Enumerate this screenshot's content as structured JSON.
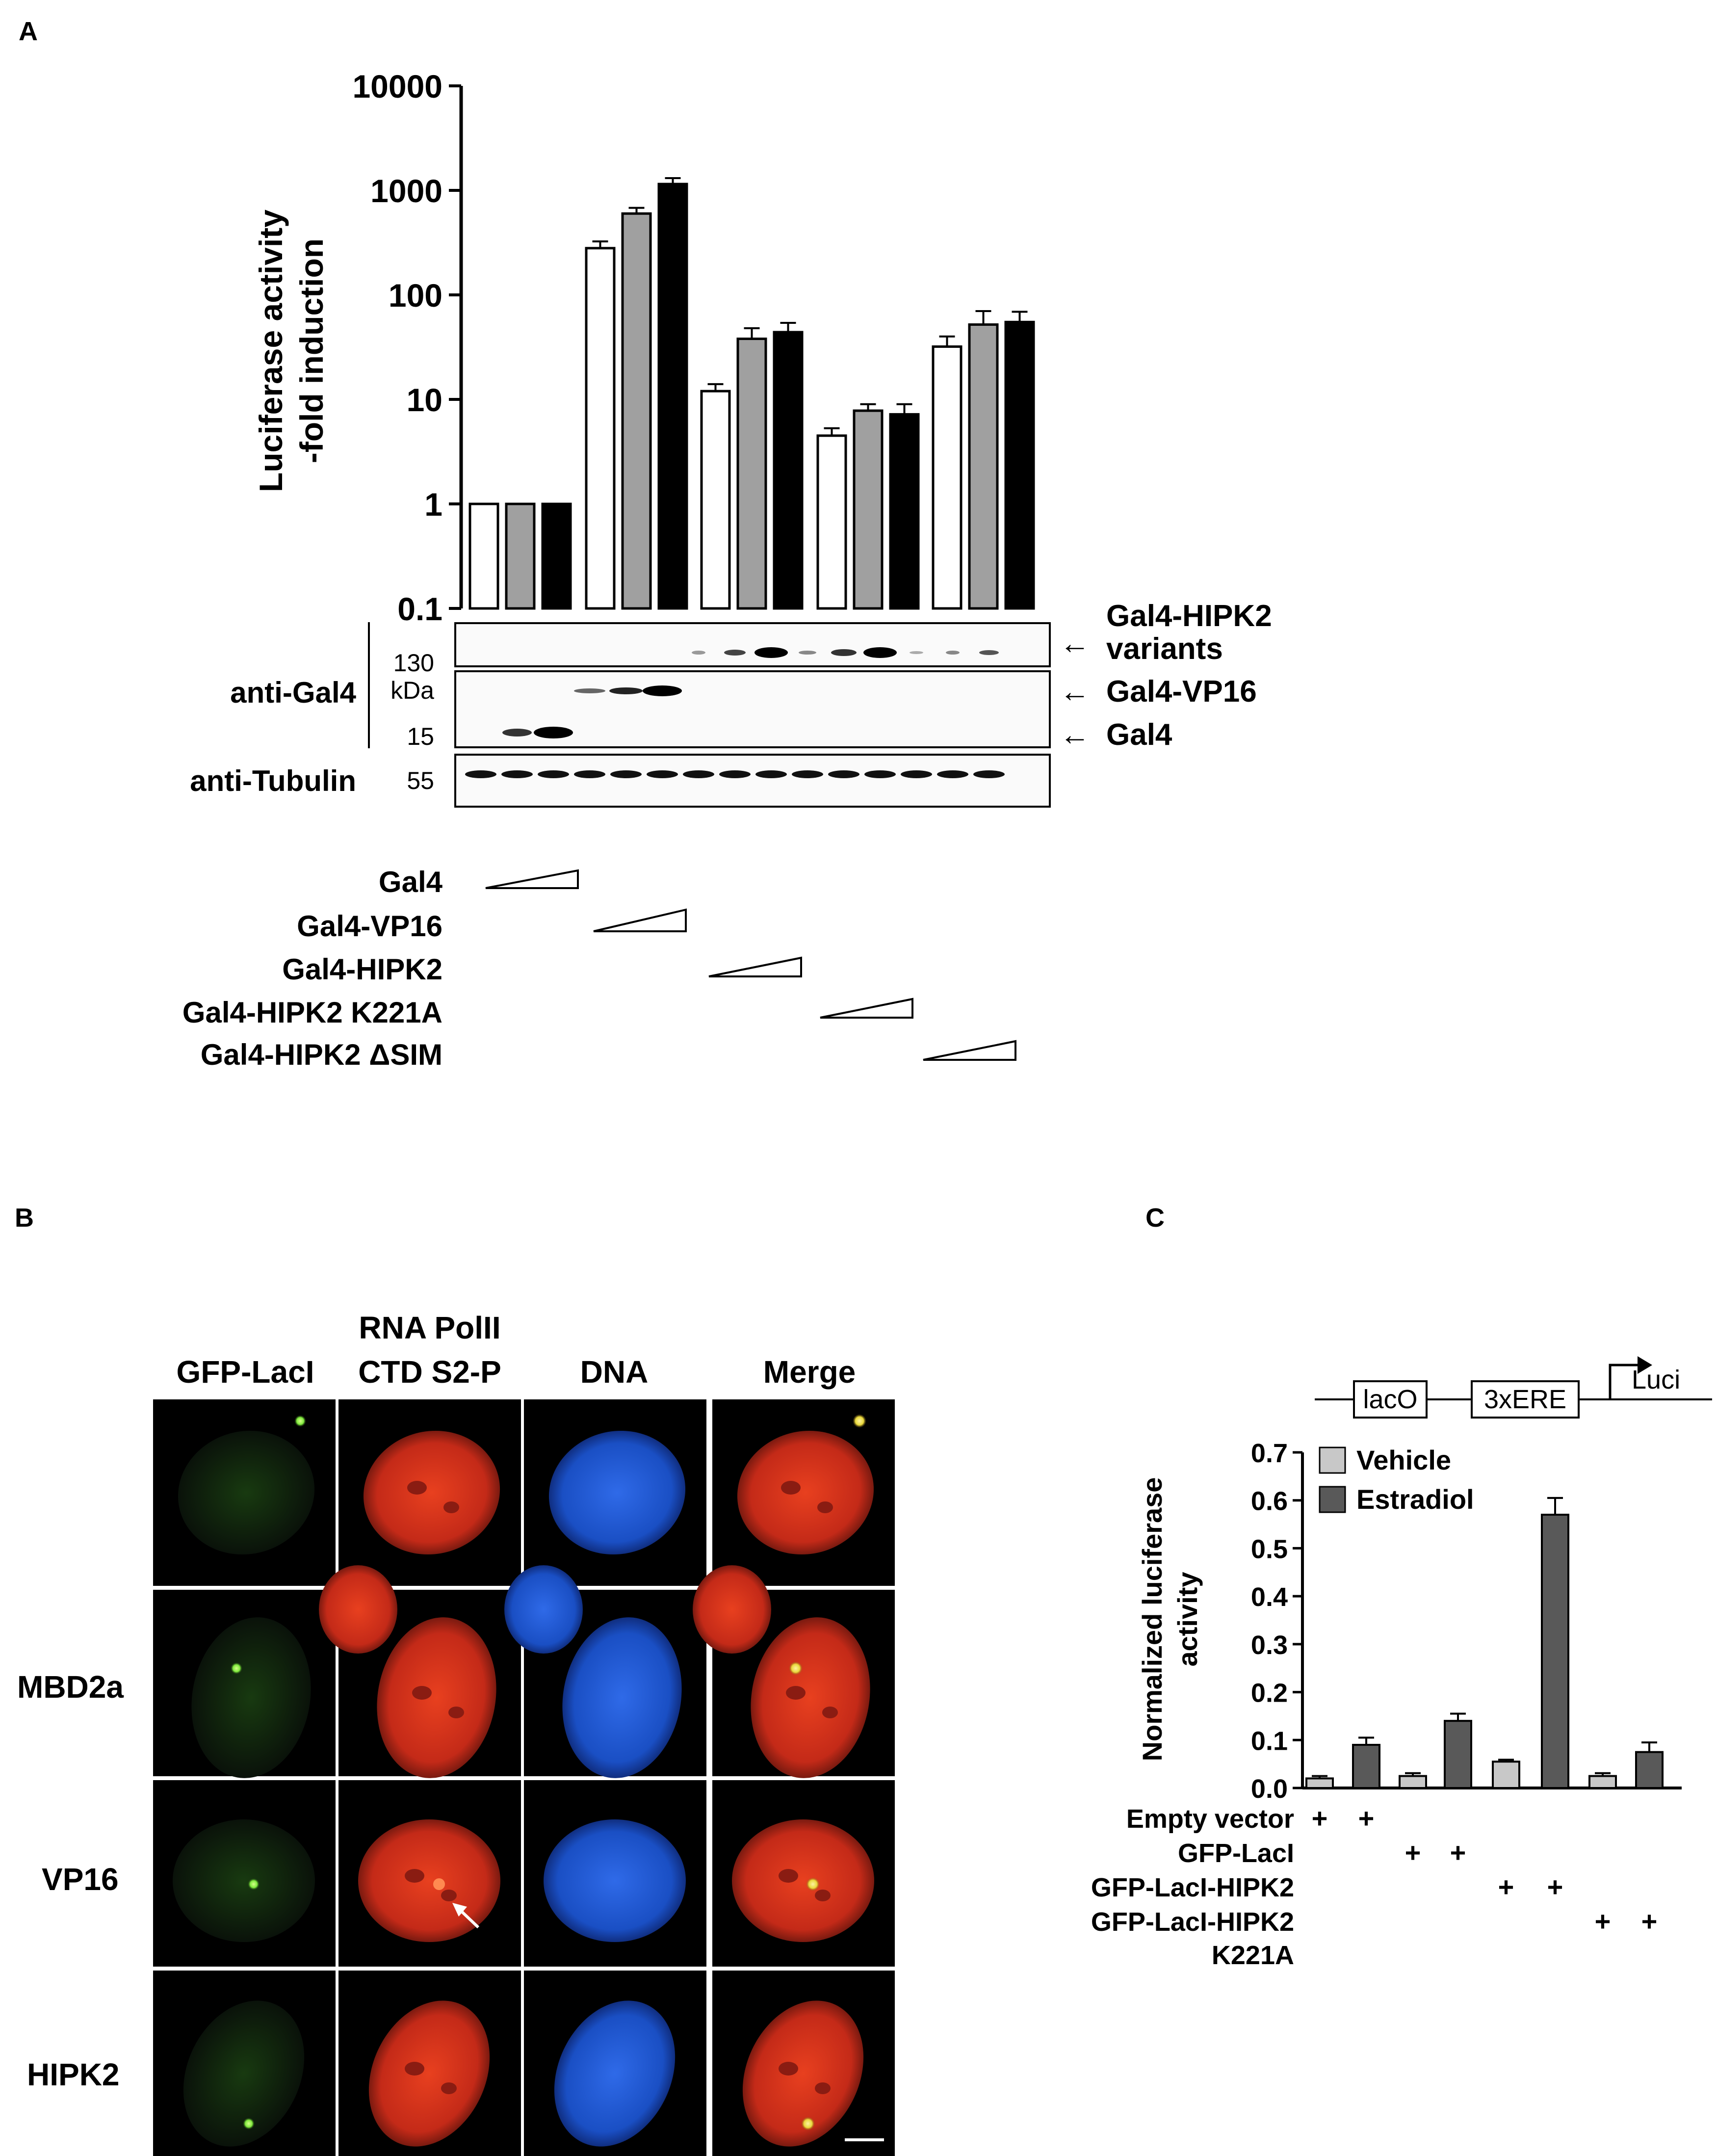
{
  "panel_labels": {
    "a": "A",
    "b": "B",
    "c": "C"
  },
  "colors": {
    "white_bar": "#ffffff",
    "gray_bar": "#a0a0a0",
    "black_bar": "#000000",
    "vehicle_bar": "#c8c8c8",
    "estradiol_bar": "#595959",
    "red_channel": "#d9301e",
    "blue_channel": "#1e5ad6",
    "green_channel": "#66dd33"
  },
  "panelA": {
    "chart_data": {
      "type": "bar",
      "scale": "log",
      "ylabel_line1": "Luciferase activity",
      "ylabel_line2": "-fold induction",
      "ylim": [
        0.1,
        10000
      ],
      "yticks": [
        "10000",
        "1000",
        "100",
        "10",
        "1",
        "0.1"
      ],
      "yticks_values": [
        10000,
        1000,
        100,
        10,
        1,
        0.1
      ],
      "groups": [
        "Gal4",
        "Gal4-VP16",
        "Gal4-HIPK2",
        "Gal4-HIPK2 K221A",
        "Gal4-HIPK2 ΔSIM"
      ],
      "series": [
        {
          "dose": "low",
          "values": [
            1,
            280,
            12,
            4.5,
            32
          ],
          "errors": [
            0,
            45,
            2,
            0.8,
            8
          ]
        },
        {
          "dose": "mid",
          "values": [
            1,
            600,
            38,
            7.8,
            52
          ],
          "errors": [
            0,
            80,
            10,
            1.2,
            18
          ]
        },
        {
          "dose": "high",
          "values": [
            1,
            1150,
            44,
            7.2,
            55
          ],
          "errors": [
            0,
            160,
            10,
            1.8,
            14
          ]
        }
      ]
    },
    "blot": {
      "antibody_gal4": "anti-Gal4",
      "antibody_tubulin": "anti-Tubulin",
      "marker_130": "130",
      "marker_kda": "kDa",
      "marker_15": "15",
      "marker_55": "55",
      "label_variants_1": "Gal4-HIPK2",
      "label_variants_2": "variants",
      "label_vp16": "Gal4-VP16",
      "label_gal4": "Gal4",
      "arrow": "←"
    },
    "constructs": [
      "Gal4",
      "Gal4-VP16",
      "Gal4-HIPK2",
      "Gal4-HIPK2 K221A",
      "Gal4-HIPK2 ΔSIM"
    ]
  },
  "panelB": {
    "col_headers": {
      "gfp": "GFP-LacI",
      "pol_line1": "RNA PolII",
      "pol_line2": "CTD S2-P",
      "dna": "DNA",
      "merge": "Merge"
    },
    "row_labels": [
      "",
      "MBD2a",
      "VP16",
      "HIPK2"
    ]
  },
  "panelC": {
    "construct": {
      "lacO": "lacO",
      "ere": "3xERE",
      "luci": "Luci"
    },
    "chart_data": {
      "type": "bar",
      "ylabel_line1": "Normalized luciferase",
      "ylabel_line2": "activity",
      "ylim": [
        0,
        0.7
      ],
      "yticks": [
        "0.7",
        "0.6",
        "0.5",
        "0.4",
        "0.3",
        "0.2",
        "0.1",
        "0.0"
      ],
      "yticks_values": [
        0.7,
        0.6,
        0.5,
        0.4,
        0.3,
        0.2,
        0.1,
        0.0
      ],
      "legend": [
        "Vehicle",
        "Estradiol"
      ],
      "groups": [
        "Empty vector",
        "GFP-LacI",
        "GFP-LacI-HIPK2",
        "GFP-LacI-HIPK2 K221A"
      ],
      "series": [
        {
          "name": "Vehicle",
          "values": [
            0.02,
            0.025,
            0.055,
            0.025
          ],
          "errors": [
            0.005,
            0.006,
            0.004,
            0.006
          ]
        },
        {
          "name": "Estradiol",
          "values": [
            0.09,
            0.14,
            0.57,
            0.075
          ],
          "errors": [
            0.015,
            0.015,
            0.035,
            0.02
          ]
        }
      ]
    },
    "table_rows": [
      {
        "label": "Empty  vector",
        "marks": [
          "+",
          "+",
          "",
          "",
          "",
          "",
          "",
          ""
        ]
      },
      {
        "label": "GFP-LacI",
        "marks": [
          "",
          "",
          "+",
          "+",
          "",
          "",
          "",
          ""
        ]
      },
      {
        "label": "GFP-LacI-HIPK2",
        "marks": [
          "",
          "",
          "",
          "",
          "+",
          "+",
          "",
          ""
        ]
      },
      {
        "label": "GFP-LacI-HIPK2",
        "marks": [
          "",
          "",
          "",
          "",
          "",
          "",
          "+",
          "+"
        ]
      }
    ],
    "table_row4_line2": "K221A"
  }
}
